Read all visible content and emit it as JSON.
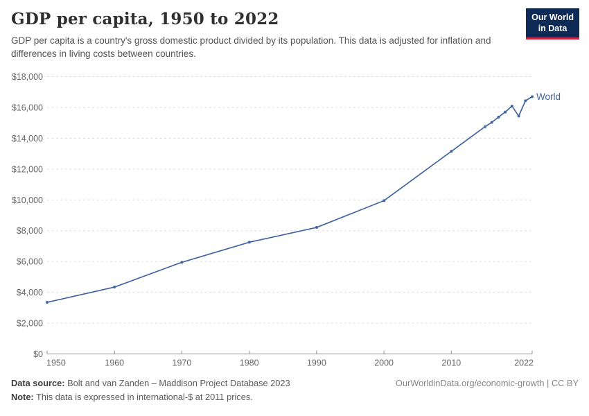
{
  "header": {
    "title": "GDP per capita, 1950 to 2022",
    "subtitle": "GDP per capita is a country's gross domestic product divided by its population. This data is adjusted for inflation and differences in living costs between countries."
  },
  "logo": {
    "line1": "Our World",
    "line2": "in Data",
    "bg_color": "#0d2b56",
    "stripe_color": "#cb2740"
  },
  "chart_data": {
    "type": "line",
    "title": "GDP per capita, 1950 to 2022",
    "xlabel": "",
    "ylabel": "",
    "x": [
      1950,
      1960,
      1970,
      1980,
      1990,
      2000,
      2010,
      2015,
      2016,
      2017,
      2018,
      2019,
      2020,
      2021,
      2022
    ],
    "series": [
      {
        "name": "World",
        "color": "#42649f",
        "values": [
          3350,
          4340,
          5950,
          7250,
          8210,
          9950,
          13150,
          14750,
          15030,
          15370,
          15700,
          16090,
          15440,
          16430,
          16700
        ]
      }
    ],
    "xlim": [
      1950,
      2022
    ],
    "ylim": [
      0,
      18000
    ],
    "grid": "horizontal-dashed",
    "legend_position": "end-of-line",
    "end_label": "World",
    "x_ticks": [
      {
        "value": 1950,
        "label": "1950"
      },
      {
        "value": 1960,
        "label": "1960"
      },
      {
        "value": 1970,
        "label": "1970"
      },
      {
        "value": 1980,
        "label": "1980"
      },
      {
        "value": 1990,
        "label": "1990"
      },
      {
        "value": 2000,
        "label": "2000"
      },
      {
        "value": 2010,
        "label": "2010"
      },
      {
        "value": 2022,
        "label": "2022"
      }
    ],
    "y_ticks": [
      {
        "value": 0,
        "label": "$0"
      },
      {
        "value": 2000,
        "label": "$2,000"
      },
      {
        "value": 4000,
        "label": "$4,000"
      },
      {
        "value": 6000,
        "label": "$6,000"
      },
      {
        "value": 8000,
        "label": "$8,000"
      },
      {
        "value": 10000,
        "label": "$10,000"
      },
      {
        "value": 12000,
        "label": "$12,000"
      },
      {
        "value": 14000,
        "label": "$14,000"
      },
      {
        "value": 16000,
        "label": "$16,000"
      },
      {
        "value": 18000,
        "label": "$18,000"
      }
    ]
  },
  "footer": {
    "source_label": "Data source:",
    "source_text": "Bolt and van Zanden – Maddison Project Database 2023",
    "note_label": "Note:",
    "note_text": "This data is expressed in international-$ at 2011 prices.",
    "link_text": "OurWorldinData.org/economic-growth | CC BY"
  }
}
